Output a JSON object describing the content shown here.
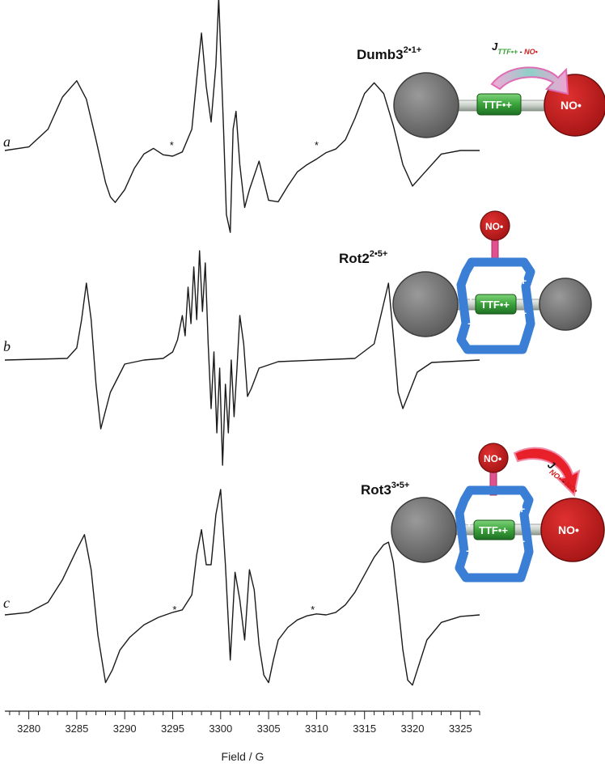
{
  "chart_data": {
    "type": "line",
    "xlabel": "Field / G",
    "xlim": [
      3277.5,
      3327
    ],
    "x_ticks": [
      3280,
      3285,
      3290,
      3295,
      3300,
      3305,
      3310,
      3315,
      3320,
      3325
    ],
    "panels": [
      {
        "letter": "a",
        "compound": "Dumb3",
        "charge": "2•1+",
        "asterisk_x": [
          3294.9,
          3310.0
        ],
        "coupling": {
          "J": "J",
          "from": "TTF•+",
          "dash": " - ",
          "to": "NO•"
        },
        "cartoon": {
          "ttf": "TTF•+",
          "no_labels": [
            "NO•"
          ]
        },
        "series": [
          {
            "x": [
              3277.5,
              3280,
              3282,
              3283.5,
              3285,
              3286,
              3287,
              3288,
              3288.5,
              3289,
              3290,
              3291,
              3292,
              3293,
              3294,
              3295,
              3296,
              3297,
              3297.5,
              3298,
              3298.5,
              3299,
              3299.5,
              3299.8,
              3300,
              3300.3,
              3300.6,
              3301,
              3301.3,
              3301.6,
              3302,
              3302.5,
              3303,
              3304,
              3305,
              3306,
              3307,
              3308,
              3309,
              3310,
              3311,
              3312,
              3313,
              3314,
              3315,
              3316,
              3317,
              3318,
              3319,
              3320,
              3321,
              3323,
              3325,
              3327
            ],
            "y": [
              0,
              0.05,
              0.3,
              0.75,
              0.98,
              0.72,
              0.15,
              -0.45,
              -0.65,
              -0.73,
              -0.55,
              -0.25,
              -0.05,
              0.03,
              -0.06,
              -0.08,
              -0.02,
              0.3,
              1.0,
              1.65,
              0.9,
              0.4,
              1.2,
              2.15,
              1.4,
              0.3,
              -0.9,
              -1.15,
              0.3,
              0.55,
              -0.2,
              -0.8,
              -0.55,
              -0.15,
              -0.7,
              -0.72,
              -0.5,
              -0.3,
              -0.2,
              -0.12,
              -0.03,
              0.02,
              0.15,
              0.45,
              0.8,
              0.95,
              0.8,
              0.35,
              -0.2,
              -0.5,
              -0.35,
              -0.05,
              0.0,
              0.0
            ]
          }
        ]
      },
      {
        "letter": "b",
        "compound": "Rot2",
        "charge": "2•5+",
        "asterisk_x": [],
        "coupling": null,
        "cartoon": {
          "ttf": "TTF•+",
          "no_labels": [
            "NO•"
          ]
        },
        "series": [
          {
            "x": [
              3277.5,
              3284,
              3285,
              3285.5,
              3286,
              3286.5,
              3287,
              3287.5,
              3288.5,
              3290,
              3292,
              3294,
              3295,
              3295.5,
              3296,
              3296.3,
              3296.6,
              3296.9,
              3297.2,
              3297.5,
              3297.8,
              3298.1,
              3298.4,
              3298.7,
              3299,
              3299.3,
              3299.6,
              3299.9,
              3300.2,
              3300.5,
              3300.8,
              3301.1,
              3301.4,
              3301.7,
              3302,
              3302.4,
              3302.8,
              3303.2,
              3304,
              3306,
              3310,
              3314,
              3316,
              3317,
              3317.5,
              3318,
              3318.5,
              3319,
              3319.5,
              3320.5,
              3322,
              3327
            ],
            "y": [
              0,
              0.02,
              0.15,
              0.5,
              0.95,
              0.5,
              -0.3,
              -0.85,
              -0.4,
              -0.05,
              0.0,
              0.02,
              0.1,
              0.25,
              0.55,
              0.3,
              0.9,
              0.45,
              1.15,
              0.5,
              1.35,
              0.6,
              1.2,
              0.2,
              -0.6,
              0.1,
              -0.9,
              -0.1,
              -1.3,
              -0.3,
              -0.9,
              0.0,
              -0.7,
              -0.1,
              0.55,
              0.2,
              -0.45,
              -0.35,
              -0.1,
              -0.02,
              0.0,
              0.02,
              0.2,
              0.7,
              0.95,
              0.3,
              -0.4,
              -0.6,
              -0.45,
              -0.15,
              -0.03,
              0.0
            ]
          }
        ]
      },
      {
        "letter": "c",
        "compound": "Rot3",
        "charge": "3•5+",
        "asterisk_x": [
          3295.2,
          3309.6
        ],
        "coupling": {
          "J": "J",
          "from": "NO•",
          "dash": " - ",
          "to": "NO•"
        },
        "cartoon": {
          "ttf": "TTF•+",
          "no_labels": [
            "NO•",
            "NO•"
          ]
        },
        "series": [
          {
            "x": [
              3277.5,
              3280,
              3282,
              3283.5,
              3285,
              3285.8,
              3286.5,
              3287.2,
              3288,
              3288.7,
              3289.5,
              3290.5,
              3292,
              3293.5,
              3295,
              3296,
              3297,
              3297.5,
              3298,
              3298.5,
              3299,
              3299.5,
              3300,
              3300.5,
              3301,
              3301.5,
              3302,
              3302.5,
              3303,
              3303.5,
              3304,
              3304.5,
              3305,
              3305.5,
              3306,
              3307,
              3308,
              3309,
              3310,
              3311,
              3312,
              3313,
              3314,
              3315,
              3316,
              3317,
              3317.5,
              3318,
              3318.5,
              3319,
              3319.5,
              3320,
              3320.5,
              3321.5,
              3323,
              3325,
              3327
            ],
            "y": [
              0,
              0.05,
              0.25,
              0.7,
              1.3,
              1.6,
              0.9,
              -0.4,
              -1.35,
              -1.1,
              -0.7,
              -0.45,
              -0.2,
              -0.05,
              0.05,
              0.1,
              0.4,
              1.2,
              1.7,
              1.0,
              1.0,
              2.0,
              2.5,
              1.0,
              -0.9,
              0.85,
              0.3,
              -0.5,
              0.9,
              0.5,
              -0.6,
              -1.2,
              -1.35,
              -0.9,
              -0.5,
              -0.25,
              -0.1,
              -0.02,
              0.02,
              0.0,
              0.05,
              0.2,
              0.45,
              0.8,
              1.15,
              1.4,
              1.45,
              1.05,
              0.2,
              -0.7,
              -1.3,
              -1.4,
              -1.1,
              -0.5,
              -0.15,
              -0.03,
              0.0
            ]
          }
        ]
      }
    ]
  }
}
